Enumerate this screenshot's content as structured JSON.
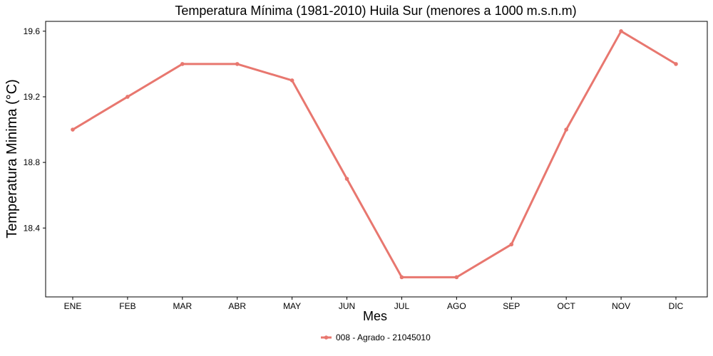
{
  "chart_data": {
    "type": "line",
    "title": "Temperatura Mínima (1981-2010) Huila Sur (menores a 1000 m.s.n.m)",
    "xlabel": "Mes",
    "ylabel": "Temperatura Minima (°C)",
    "categories": [
      "ENE",
      "FEB",
      "MAR",
      "ABR",
      "MAY",
      "JUN",
      "JUL",
      "AGO",
      "SEP",
      "OCT",
      "NOV",
      "DIC"
    ],
    "series": [
      {
        "name": "008 - Agrado - 21045010",
        "values": [
          19.0,
          19.2,
          19.4,
          19.4,
          19.3,
          18.7,
          18.1,
          18.1,
          18.3,
          19.0,
          19.6,
          19.4
        ],
        "color": "#E8776F"
      }
    ],
    "ylim": [
      17.98,
      19.66
    ],
    "yticks": [
      18.4,
      18.8,
      19.2,
      19.6
    ],
    "ytick_labels": [
      "18.4",
      "18.8",
      "19.2",
      "19.6"
    ],
    "grid": false,
    "legend_position": "bottom"
  }
}
